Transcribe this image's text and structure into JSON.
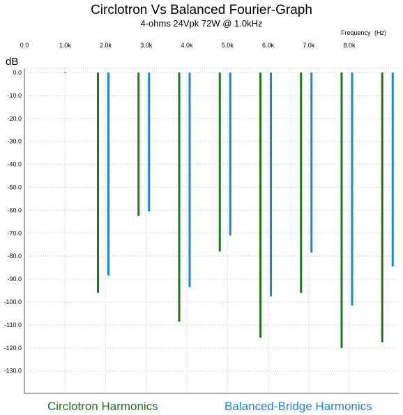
{
  "title": "Circlotron Vs Balanced Fourier-Graph",
  "subtitle": "4-ohms 24Vpk 72W @ 1.0kHz",
  "chart_data": {
    "type": "bar",
    "title": "Circlotron Vs Balanced Fourier-Graph",
    "subtitle": "4-ohms 24Vpk 72W @ 1.0kHz",
    "xlabel": "Frequency",
    "xunit": "(Hz)",
    "ylabel": "dB",
    "x_ticks": [
      "0.0",
      "1.0k",
      "2.0k",
      "3.0k",
      "4.0k",
      "5.0k",
      "6.0k",
      "7.0k",
      "8.0k"
    ],
    "y_ticks": [
      "0.0",
      "-10.0",
      "-20.0",
      "-30.0",
      "-40.0",
      "-50.0",
      "-60.0",
      "-70.0",
      "-80.0",
      "-90.0",
      "-100.0",
      "-110.0",
      "-120.0",
      "-130.0"
    ],
    "xlim": [
      0,
      9500
    ],
    "ylim": [
      -140,
      0
    ],
    "grid": true,
    "x": [
      1000,
      2000,
      3000,
      4000,
      5000,
      6000,
      7000,
      8000,
      9000
    ],
    "series": [
      {
        "name": "Circlotron Harmonics",
        "color": "#1a7a1a",
        "values": [
          0.0,
          -96.0,
          -62.5,
          -108.5,
          -78.0,
          -115.5,
          -96.0,
          -120.0,
          -117.5
        ]
      },
      {
        "name": "Balanced-Bridge Harmonics",
        "color": "#1a85e0",
        "values": [
          0.0,
          -88.5,
          -60.5,
          -93.5,
          -71.0,
          -97.5,
          -78.5,
          -101.5,
          -84.5
        ]
      }
    ]
  }
}
